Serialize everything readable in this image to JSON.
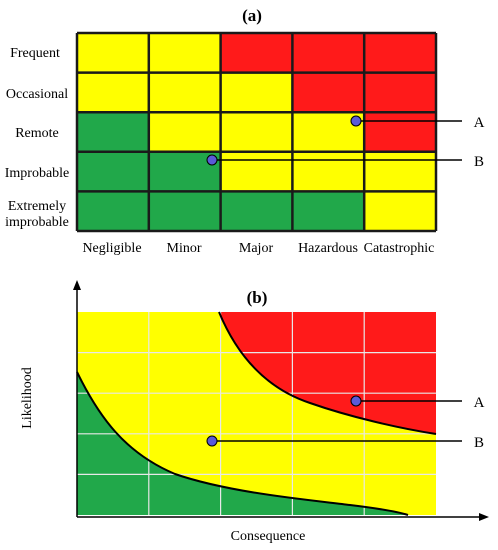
{
  "panel_a": {
    "title": "(a)",
    "rows": [
      "Frequent",
      "Occasional",
      "Remote",
      "Improbable",
      "Extremely improbable"
    ],
    "columns": [
      "Negligible",
      "Minor",
      "Major",
      "Hazardous",
      "Catastrophic"
    ],
    "cells": [
      [
        "yellow",
        "yellow",
        "red",
        "red",
        "red"
      ],
      [
        "yellow",
        "yellow",
        "yellow",
        "red",
        "red"
      ],
      [
        "green",
        "yellow",
        "yellow",
        "yellow",
        "red"
      ],
      [
        "green",
        "green",
        "yellow",
        "yellow",
        "yellow"
      ],
      [
        "green",
        "green",
        "green",
        "green",
        "yellow"
      ]
    ],
    "markers": [
      {
        "label": "A"
      },
      {
        "label": "B"
      }
    ]
  },
  "panel_b": {
    "title": "(b)",
    "xlabel": "Consequence",
    "ylabel": "Likelihood",
    "markers": [
      {
        "label": "A"
      },
      {
        "label": "B"
      }
    ]
  },
  "colors": {
    "red": "#ff1a1a",
    "yellow": "#ffff00",
    "green": "#21a84a",
    "border": "#1a1a1a",
    "marker": "#5a5ad8",
    "grid_b": "#e8e8e8"
  }
}
